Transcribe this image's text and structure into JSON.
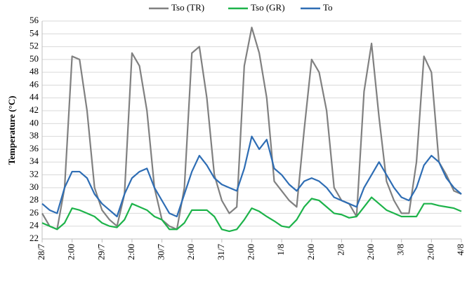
{
  "chart_data": {
    "type": "line",
    "ylabel": "Temperature (°C)",
    "categories": [
      "28/7",
      null,
      null,
      null,
      "2:00",
      null,
      null,
      null,
      "29/7",
      null,
      null,
      null,
      "2:00",
      null,
      null,
      null,
      "30/7",
      null,
      null,
      null,
      "2:00",
      null,
      null,
      null,
      "31/7",
      null,
      null,
      null,
      "2:00",
      null,
      null,
      null,
      "1/8",
      null,
      null,
      null,
      "2:00",
      null,
      null,
      null,
      "2/8",
      null,
      null,
      null,
      "2:00",
      null,
      null,
      null,
      "3/8",
      null,
      null,
      null,
      "2:00",
      null,
      null,
      null,
      "4/8"
    ],
    "series": [
      {
        "name": "Tso (TR)",
        "color": "#808080",
        "values": [
          26,
          24,
          23.5,
          30,
          50.5,
          50,
          42,
          30,
          26.5,
          25,
          24,
          29,
          51,
          49,
          42,
          30,
          25,
          24,
          23.5,
          30,
          51,
          52,
          44,
          32,
          28,
          26,
          27,
          49,
          55,
          51,
          44,
          31,
          29.5,
          28,
          27,
          39,
          50,
          48,
          42,
          30,
          28,
          27.5,
          25.5,
          45,
          52.5,
          41,
          31,
          28,
          26,
          26,
          34,
          50.5,
          48,
          34,
          32,
          29.5,
          29
        ]
      },
      {
        "name": "Tso (GR)",
        "color": "#1db34a",
        "values": [
          24.5,
          24,
          23.5,
          24.5,
          26.8,
          26.5,
          26,
          25.5,
          24.5,
          24,
          23.8,
          25,
          27.5,
          27,
          26.5,
          25.5,
          25,
          23.5,
          23.5,
          24.5,
          26.5,
          26.5,
          26.5,
          25.5,
          23.5,
          23.2,
          23.5,
          25,
          26.8,
          26.3,
          25.5,
          24.8,
          24,
          23.8,
          25,
          27,
          28.3,
          28,
          27,
          26,
          25.8,
          25.3,
          25.5,
          27,
          28.5,
          27.5,
          26.5,
          26,
          25.5,
          25.5,
          25.5,
          27.5,
          27.5,
          27.2,
          27,
          26.8,
          26.3
        ]
      },
      {
        "name": "To",
        "color": "#2e6db4",
        "values": [
          27.5,
          26.5,
          26,
          30,
          32.5,
          32.5,
          31.5,
          29,
          27.5,
          26.5,
          25.5,
          29,
          31.5,
          32.5,
          33,
          30,
          28,
          26,
          25.5,
          29,
          32.5,
          35,
          33.5,
          31.5,
          30.5,
          30,
          29.5,
          33,
          38,
          36,
          37.5,
          33,
          32,
          30.5,
          29.5,
          31,
          31.5,
          31,
          30,
          28.5,
          28,
          27.5,
          27,
          30,
          32,
          34,
          32,
          30,
          28.5,
          28,
          30,
          33.5,
          35,
          34,
          31.5,
          30,
          29
        ]
      }
    ],
    "ylim": [
      22,
      56
    ],
    "yticks": [
      22,
      24,
      26,
      28,
      30,
      32,
      34,
      36,
      38,
      40,
      42,
      44,
      46,
      48,
      50,
      52,
      54,
      56
    ],
    "grid": true
  }
}
